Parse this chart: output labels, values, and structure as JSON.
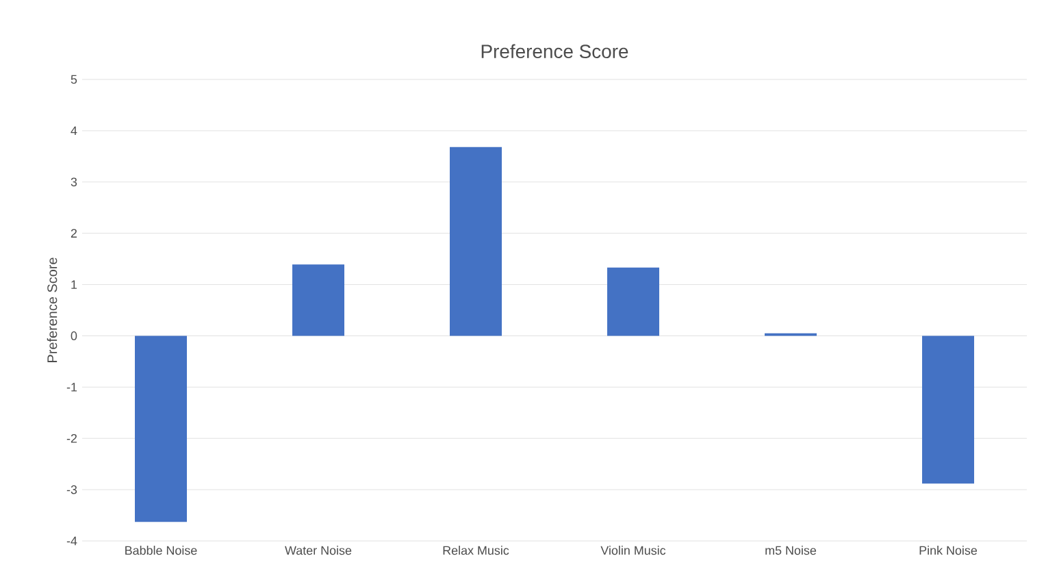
{
  "chart_data": {
    "type": "bar",
    "title": "Preference Score",
    "ylabel": "Preference Score",
    "categories": [
      "Babble Noise",
      "Water Noise",
      "Relax Music",
      "Violin Music",
      "m5 Noise",
      "Pink Noise"
    ],
    "values": [
      -3.63,
      1.39,
      3.68,
      1.33,
      0.05,
      -2.88
    ],
    "color": "#4472c4",
    "ylim": [
      -4,
      5
    ],
    "yticks": [
      -4,
      -3,
      -2,
      -1,
      0,
      1,
      2,
      3,
      4,
      5
    ],
    "grid": "y"
  }
}
